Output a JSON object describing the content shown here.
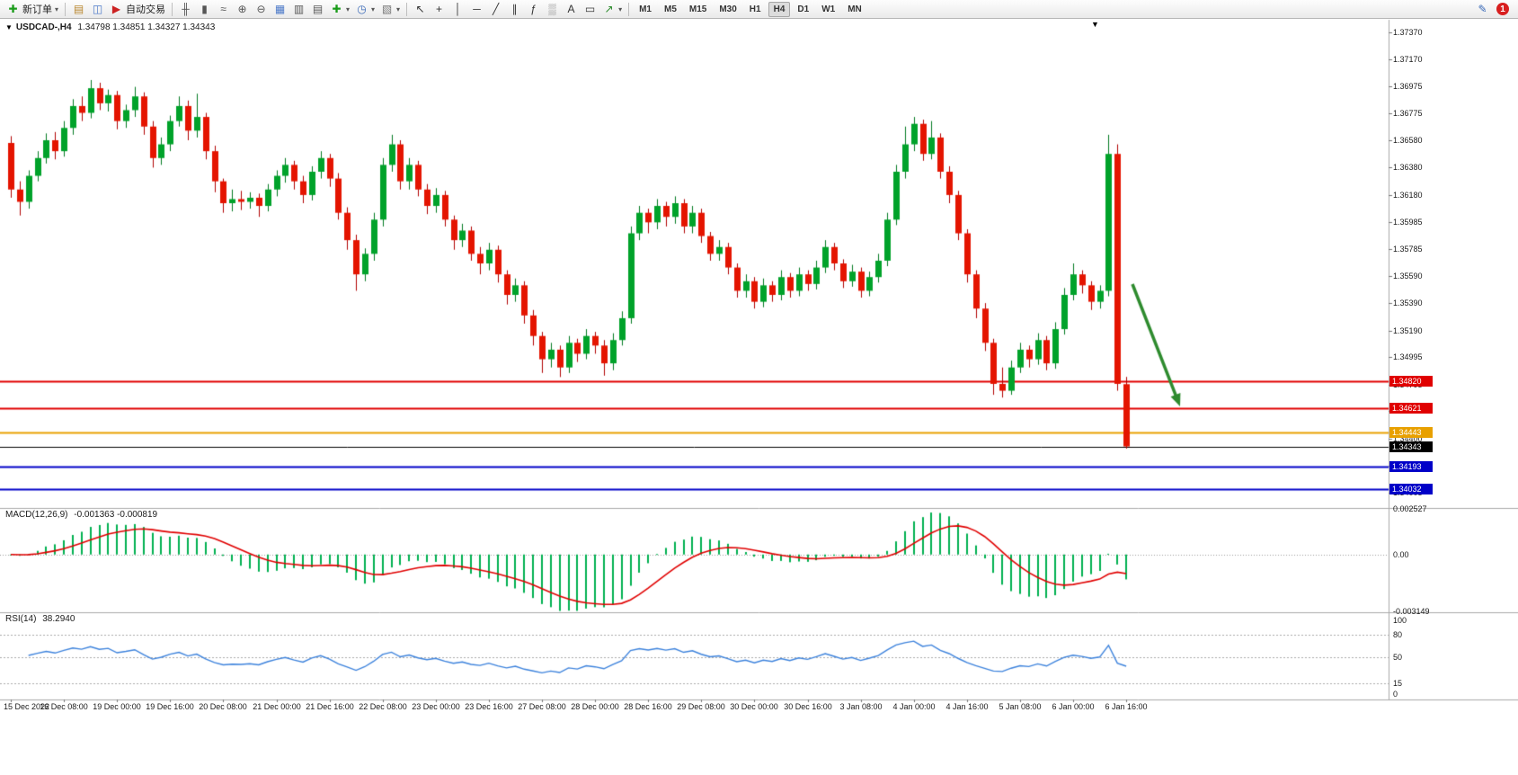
{
  "toolbar": {
    "new_order": {
      "label": "新订单"
    },
    "groups": [
      {
        "items": [
          {
            "name": "charts-profile-button",
            "glyph": "▤",
            "color": "#b8862d"
          },
          {
            "name": "market-watch-button",
            "glyph": "◫",
            "color": "#4a78c8"
          },
          {
            "name": "auto-trading-button",
            "glyph": "▶",
            "color": "#cc2222",
            "label": "自动交易"
          }
        ]
      },
      {
        "items": [
          {
            "name": "bar-chart-button",
            "glyph": "╫",
            "color": "#555555"
          },
          {
            "name": "candlestick-chart-button",
            "glyph": "▮",
            "color": "#555555"
          },
          {
            "name": "line-chart-button",
            "glyph": "≈",
            "color": "#555555"
          },
          {
            "name": "zoom-in-button",
            "glyph": "⊕",
            "color": "#555555"
          },
          {
            "name": "zoom-out-button",
            "glyph": "⊖",
            "color": "#555555"
          },
          {
            "name": "tile-windows-button",
            "glyph": "▦",
            "color": "#4a78c8"
          },
          {
            "name": "arrange-horizontal-button",
            "glyph": "▥",
            "color": "#555555"
          },
          {
            "name": "arrange-vertical-button",
            "glyph": "▤",
            "color": "#555555"
          },
          {
            "name": "indicators-button",
            "glyph": "✚",
            "color": "#1a9c1a",
            "caret": true
          },
          {
            "name": "periods-button",
            "glyph": "◷",
            "color": "#3a6ab8",
            "caret": true
          },
          {
            "name": "templates-button",
            "glyph": "▧",
            "color": "#777777",
            "caret": true
          }
        ]
      },
      {
        "items": [
          {
            "name": "cursor-button",
            "glyph": "↖",
            "color": "#333333"
          },
          {
            "name": "crosshair-button",
            "glyph": "+",
            "color": "#333333"
          },
          {
            "name": "vertical-line-button",
            "glyph": "│",
            "color": "#333333"
          },
          {
            "name": "horizontal-line-button",
            "glyph": "─",
            "color": "#333333"
          },
          {
            "name": "trendline-button",
            "glyph": "╱",
            "color": "#333333"
          },
          {
            "name": "channel-button",
            "glyph": "∥",
            "color": "#333333"
          },
          {
            "name": "fibonacci-button",
            "glyph": "ƒ",
            "color": "#333333"
          },
          {
            "name": "grid-button",
            "glyph": "▒",
            "color": "#888888"
          },
          {
            "name": "text-button",
            "glyph": "A",
            "color": "#333333"
          },
          {
            "name": "text-label-button",
            "glyph": "▭",
            "color": "#333333"
          },
          {
            "name": "arrows-button",
            "glyph": "↗",
            "color": "#2a8a2a",
            "caret": true
          }
        ]
      }
    ],
    "timeframes": [
      "M1",
      "M5",
      "M15",
      "M30",
      "H1",
      "H4",
      "D1",
      "W1",
      "MN"
    ],
    "active_timeframe": "H4",
    "right": {
      "pencil_color": "#3a6ab8",
      "notification_count": "1",
      "notification_color": "#d81f1f"
    }
  },
  "chart": {
    "title": "USDCAD-,H4",
    "ohlc_text": "1.34798 1.34851 1.34327 1.34343",
    "symbol": "USDCAD",
    "period": "H4",
    "bull_color": "#00A22A",
    "bear_color": "#E41400",
    "bull_wick_color": "#007a20",
    "bear_wick_color": "#b00000",
    "price_axis_labels": [
      "1.37370",
      "1.37170",
      "1.36975",
      "1.36775",
      "1.36580",
      "1.36380",
      "1.36180",
      "1.35985",
      "1.35785",
      "1.35590",
      "1.35390",
      "1.35190",
      "1.34995",
      "1.34795",
      "1.34600",
      "1.34400",
      "1.34200",
      "1.34005"
    ],
    "price_lines": [
      {
        "price": 1.3482,
        "label": "1.34820",
        "color": "#E00000",
        "thickness": 2
      },
      {
        "price": 1.34621,
        "label": "1.34621",
        "color": "#E00000",
        "thickness": 2
      },
      {
        "price": 1.34443,
        "label": "1.34443",
        "color": "#E8A000",
        "thickness": 2
      },
      {
        "price": 1.34343,
        "label": "1.34343",
        "color": "#000000",
        "thickness": 1,
        "current": true
      },
      {
        "price": 1.34193,
        "label": "1.34193",
        "color": "#0000C8",
        "thickness": 2
      },
      {
        "price": 1.34032,
        "label": "1.34032",
        "color": "#0000C8",
        "thickness": 2
      }
    ],
    "time_labels": [
      "15 Dec 2022",
      "16 Dec 08:00",
      "19 Dec 00:00",
      "19 Dec 16:00",
      "20 Dec 08:00",
      "21 Dec 00:00",
      "21 Dec 16:00",
      "22 Dec 08:00",
      "23 Dec 00:00",
      "23 Dec 16:00",
      "27 Dec 08:00",
      "28 Dec 00:00",
      "28 Dec 16:00",
      "29 Dec 08:00",
      "30 Dec 00:00",
      "30 Dec 16:00",
      "3 Jan 08:00",
      "4 Jan 00:00",
      "4 Jan 16:00",
      "5 Jan 08:00",
      "6 Jan 00:00",
      "6 Jan 16:00"
    ],
    "annotation_arrow": {
      "color": "#2E8B2E"
    },
    "candles": [
      [
        1.3656,
        1.3661,
        1.3616,
        1.3622
      ],
      [
        1.3622,
        1.3628,
        1.3603,
        1.3613
      ],
      [
        1.3613,
        1.3636,
        1.3608,
        1.3632
      ],
      [
        1.3632,
        1.365,
        1.3628,
        1.3645
      ],
      [
        1.3645,
        1.3663,
        1.3641,
        1.3658
      ],
      [
        1.3658,
        1.3664,
        1.3644,
        1.365
      ],
      [
        1.365,
        1.3672,
        1.3646,
        1.3667
      ],
      [
        1.3667,
        1.3688,
        1.3662,
        1.3683
      ],
      [
        1.3683,
        1.369,
        1.3672,
        1.3678
      ],
      [
        1.3678,
        1.3702,
        1.3674,
        1.3696
      ],
      [
        1.3696,
        1.37,
        1.368,
        1.3685
      ],
      [
        1.3685,
        1.3695,
        1.3679,
        1.3691
      ],
      [
        1.3691,
        1.3694,
        1.3666,
        1.3672
      ],
      [
        1.3672,
        1.3684,
        1.3667,
        1.368
      ],
      [
        1.368,
        1.3697,
        1.3675,
        1.369
      ],
      [
        1.369,
        1.3693,
        1.3662,
        1.3668
      ],
      [
        1.3668,
        1.3672,
        1.3638,
        1.3645
      ],
      [
        1.3645,
        1.366,
        1.364,
        1.3655
      ],
      [
        1.3655,
        1.3676,
        1.365,
        1.3672
      ],
      [
        1.3672,
        1.369,
        1.3668,
        1.3683
      ],
      [
        1.3683,
        1.3687,
        1.3658,
        1.3665
      ],
      [
        1.3665,
        1.3692,
        1.366,
        1.3675
      ],
      [
        1.3675,
        1.3678,
        1.3644,
        1.365
      ],
      [
        1.365,
        1.3654,
        1.362,
        1.3628
      ],
      [
        1.3628,
        1.363,
        1.3605,
        1.3612
      ],
      [
        1.3612,
        1.3622,
        1.3606,
        1.3615
      ],
      [
        1.3615,
        1.3621,
        1.3607,
        1.3613
      ],
      [
        1.3613,
        1.362,
        1.3608,
        1.3616
      ],
      [
        1.3616,
        1.3619,
        1.3602,
        1.361
      ],
      [
        1.361,
        1.3626,
        1.3606,
        1.3622
      ],
      [
        1.3622,
        1.3636,
        1.3617,
        1.3632
      ],
      [
        1.3632,
        1.3645,
        1.3627,
        1.364
      ],
      [
        1.364,
        1.3643,
        1.3622,
        1.3628
      ],
      [
        1.3628,
        1.3632,
        1.3612,
        1.3618
      ],
      [
        1.3618,
        1.3639,
        1.3614,
        1.3635
      ],
      [
        1.3635,
        1.365,
        1.363,
        1.3645
      ],
      [
        1.3645,
        1.3648,
        1.3624,
        1.363
      ],
      [
        1.363,
        1.3634,
        1.36,
        1.3605
      ],
      [
        1.3605,
        1.3609,
        1.3578,
        1.3585
      ],
      [
        1.3585,
        1.3589,
        1.3548,
        1.356
      ],
      [
        1.356,
        1.3579,
        1.3555,
        1.3575
      ],
      [
        1.3575,
        1.3605,
        1.357,
        1.36
      ],
      [
        1.36,
        1.3645,
        1.3595,
        1.364
      ],
      [
        1.364,
        1.3662,
        1.3635,
        1.3655
      ],
      [
        1.3655,
        1.3658,
        1.3622,
        1.3628
      ],
      [
        1.3628,
        1.3645,
        1.3622,
        1.364
      ],
      [
        1.364,
        1.3643,
        1.3617,
        1.3622
      ],
      [
        1.3622,
        1.3626,
        1.3604,
        1.361
      ],
      [
        1.361,
        1.3623,
        1.3605,
        1.3618
      ],
      [
        1.3618,
        1.3621,
        1.3595,
        1.36
      ],
      [
        1.36,
        1.3603,
        1.3578,
        1.3585
      ],
      [
        1.3585,
        1.3597,
        1.358,
        1.3592
      ],
      [
        1.3592,
        1.3595,
        1.357,
        1.3575
      ],
      [
        1.3575,
        1.358,
        1.356,
        1.3568
      ],
      [
        1.3568,
        1.3583,
        1.3563,
        1.3578
      ],
      [
        1.3578,
        1.3581,
        1.3554,
        1.356
      ],
      [
        1.356,
        1.3563,
        1.3538,
        1.3545
      ],
      [
        1.3545,
        1.3557,
        1.354,
        1.3552
      ],
      [
        1.3552,
        1.3555,
        1.3524,
        1.353
      ],
      [
        1.353,
        1.3534,
        1.3508,
        1.3515
      ],
      [
        1.3515,
        1.3518,
        1.3488,
        1.3498
      ],
      [
        1.3498,
        1.351,
        1.3492,
        1.3505
      ],
      [
        1.3505,
        1.3508,
        1.3485,
        1.3492
      ],
      [
        1.3492,
        1.3515,
        1.3488,
        1.351
      ],
      [
        1.351,
        1.3513,
        1.3496,
        1.3502
      ],
      [
        1.3502,
        1.352,
        1.3498,
        1.3515
      ],
      [
        1.3515,
        1.3518,
        1.3502,
        1.3508
      ],
      [
        1.3508,
        1.3512,
        1.3486,
        1.3495
      ],
      [
        1.3495,
        1.3517,
        1.349,
        1.3512
      ],
      [
        1.3512,
        1.3533,
        1.3508,
        1.3528
      ],
      [
        1.3528,
        1.3595,
        1.3524,
        1.359
      ],
      [
        1.359,
        1.361,
        1.3585,
        1.3605
      ],
      [
        1.3605,
        1.3608,
        1.359,
        1.3598
      ],
      [
        1.3598,
        1.3615,
        1.3593,
        1.361
      ],
      [
        1.361,
        1.3613,
        1.3595,
        1.3602
      ],
      [
        1.3602,
        1.3617,
        1.3597,
        1.3612
      ],
      [
        1.3612,
        1.3615,
        1.359,
        1.3595
      ],
      [
        1.3595,
        1.361,
        1.359,
        1.3605
      ],
      [
        1.3605,
        1.3608,
        1.3583,
        1.3588
      ],
      [
        1.3588,
        1.3591,
        1.357,
        1.3575
      ],
      [
        1.3575,
        1.3585,
        1.357,
        1.358
      ],
      [
        1.358,
        1.3583,
        1.356,
        1.3565
      ],
      [
        1.3565,
        1.3568,
        1.3543,
        1.3548
      ],
      [
        1.3548,
        1.356,
        1.3543,
        1.3555
      ],
      [
        1.3555,
        1.3558,
        1.3535,
        1.354
      ],
      [
        1.354,
        1.3557,
        1.3536,
        1.3552
      ],
      [
        1.3552,
        1.3555,
        1.354,
        1.3545
      ],
      [
        1.3545,
        1.3563,
        1.3541,
        1.3558
      ],
      [
        1.3558,
        1.3561,
        1.3543,
        1.3548
      ],
      [
        1.3548,
        1.3565,
        1.3544,
        1.356
      ],
      [
        1.356,
        1.3563,
        1.3548,
        1.3553
      ],
      [
        1.3553,
        1.357,
        1.3549,
        1.3565
      ],
      [
        1.3565,
        1.3585,
        1.3561,
        1.358
      ],
      [
        1.358,
        1.3583,
        1.3563,
        1.3568
      ],
      [
        1.3568,
        1.3571,
        1.355,
        1.3555
      ],
      [
        1.3555,
        1.3567,
        1.3551,
        1.3562
      ],
      [
        1.3562,
        1.3565,
        1.3543,
        1.3548
      ],
      [
        1.3548,
        1.3562,
        1.3544,
        1.3558
      ],
      [
        1.3558,
        1.3575,
        1.3554,
        1.357
      ],
      [
        1.357,
        1.3605,
        1.3566,
        1.36
      ],
      [
        1.36,
        1.364,
        1.3596,
        1.3635
      ],
      [
        1.3635,
        1.3668,
        1.363,
        1.3655
      ],
      [
        1.3655,
        1.3675,
        1.365,
        1.367
      ],
      [
        1.367,
        1.3673,
        1.3643,
        1.3648
      ],
      [
        1.3648,
        1.3672,
        1.3644,
        1.366
      ],
      [
        1.366,
        1.3663,
        1.363,
        1.3635
      ],
      [
        1.3635,
        1.3639,
        1.3612,
        1.3618
      ],
      [
        1.3618,
        1.3621,
        1.3585,
        1.359
      ],
      [
        1.359,
        1.3593,
        1.3554,
        1.356
      ],
      [
        1.356,
        1.3563,
        1.3528,
        1.3535
      ],
      [
        1.3535,
        1.3539,
        1.3504,
        1.351
      ],
      [
        1.351,
        1.3513,
        1.3472,
        1.348
      ],
      [
        1.348,
        1.3492,
        1.347,
        1.3475
      ],
      [
        1.3475,
        1.3497,
        1.3472,
        1.3492
      ],
      [
        1.3492,
        1.351,
        1.3488,
        1.3505
      ],
      [
        1.3505,
        1.3508,
        1.3492,
        1.3498
      ],
      [
        1.3498,
        1.3517,
        1.3494,
        1.3512
      ],
      [
        1.3512,
        1.3515,
        1.349,
        1.3495
      ],
      [
        1.3495,
        1.3525,
        1.3491,
        1.352
      ],
      [
        1.352,
        1.355,
        1.3516,
        1.3545
      ],
      [
        1.3545,
        1.3568,
        1.3541,
        1.356
      ],
      [
        1.356,
        1.3563,
        1.3546,
        1.3552
      ],
      [
        1.3552,
        1.3555,
        1.3534,
        1.354
      ],
      [
        1.354,
        1.3552,
        1.3535,
        1.3548
      ],
      [
        1.3548,
        1.3662,
        1.3544,
        1.3648
      ],
      [
        1.3648,
        1.3655,
        1.3475,
        1.348
      ],
      [
        1.34798,
        1.34851,
        1.34327,
        1.34343
      ]
    ]
  },
  "macd": {
    "label": "MACD(12,26,9)",
    "values_text": "-0.001363 -0.000819",
    "scale_max": 0.002527,
    "scale_min": -0.003149,
    "scale": [
      {
        "v": 0.002527,
        "t": "0.002527"
      },
      {
        "v": 0,
        "t": "0.00"
      },
      {
        "v": -0.003149,
        "t": "-0.003149"
      }
    ],
    "histogram_color": "#00B050",
    "signal_color": "#E00000"
  },
  "rsi": {
    "label": "RSI(14)",
    "value_text": "38.2940",
    "scale": [
      {
        "v": 100,
        "t": "100"
      },
      {
        "v": 80,
        "t": "80"
      },
      {
        "v": 50,
        "t": "50"
      },
      {
        "v": 15,
        "t": "15"
      },
      {
        "v": 0,
        "t": "0"
      }
    ],
    "levels": [
      80,
      50,
      15
    ],
    "line_color": "#3C82DC"
  }
}
